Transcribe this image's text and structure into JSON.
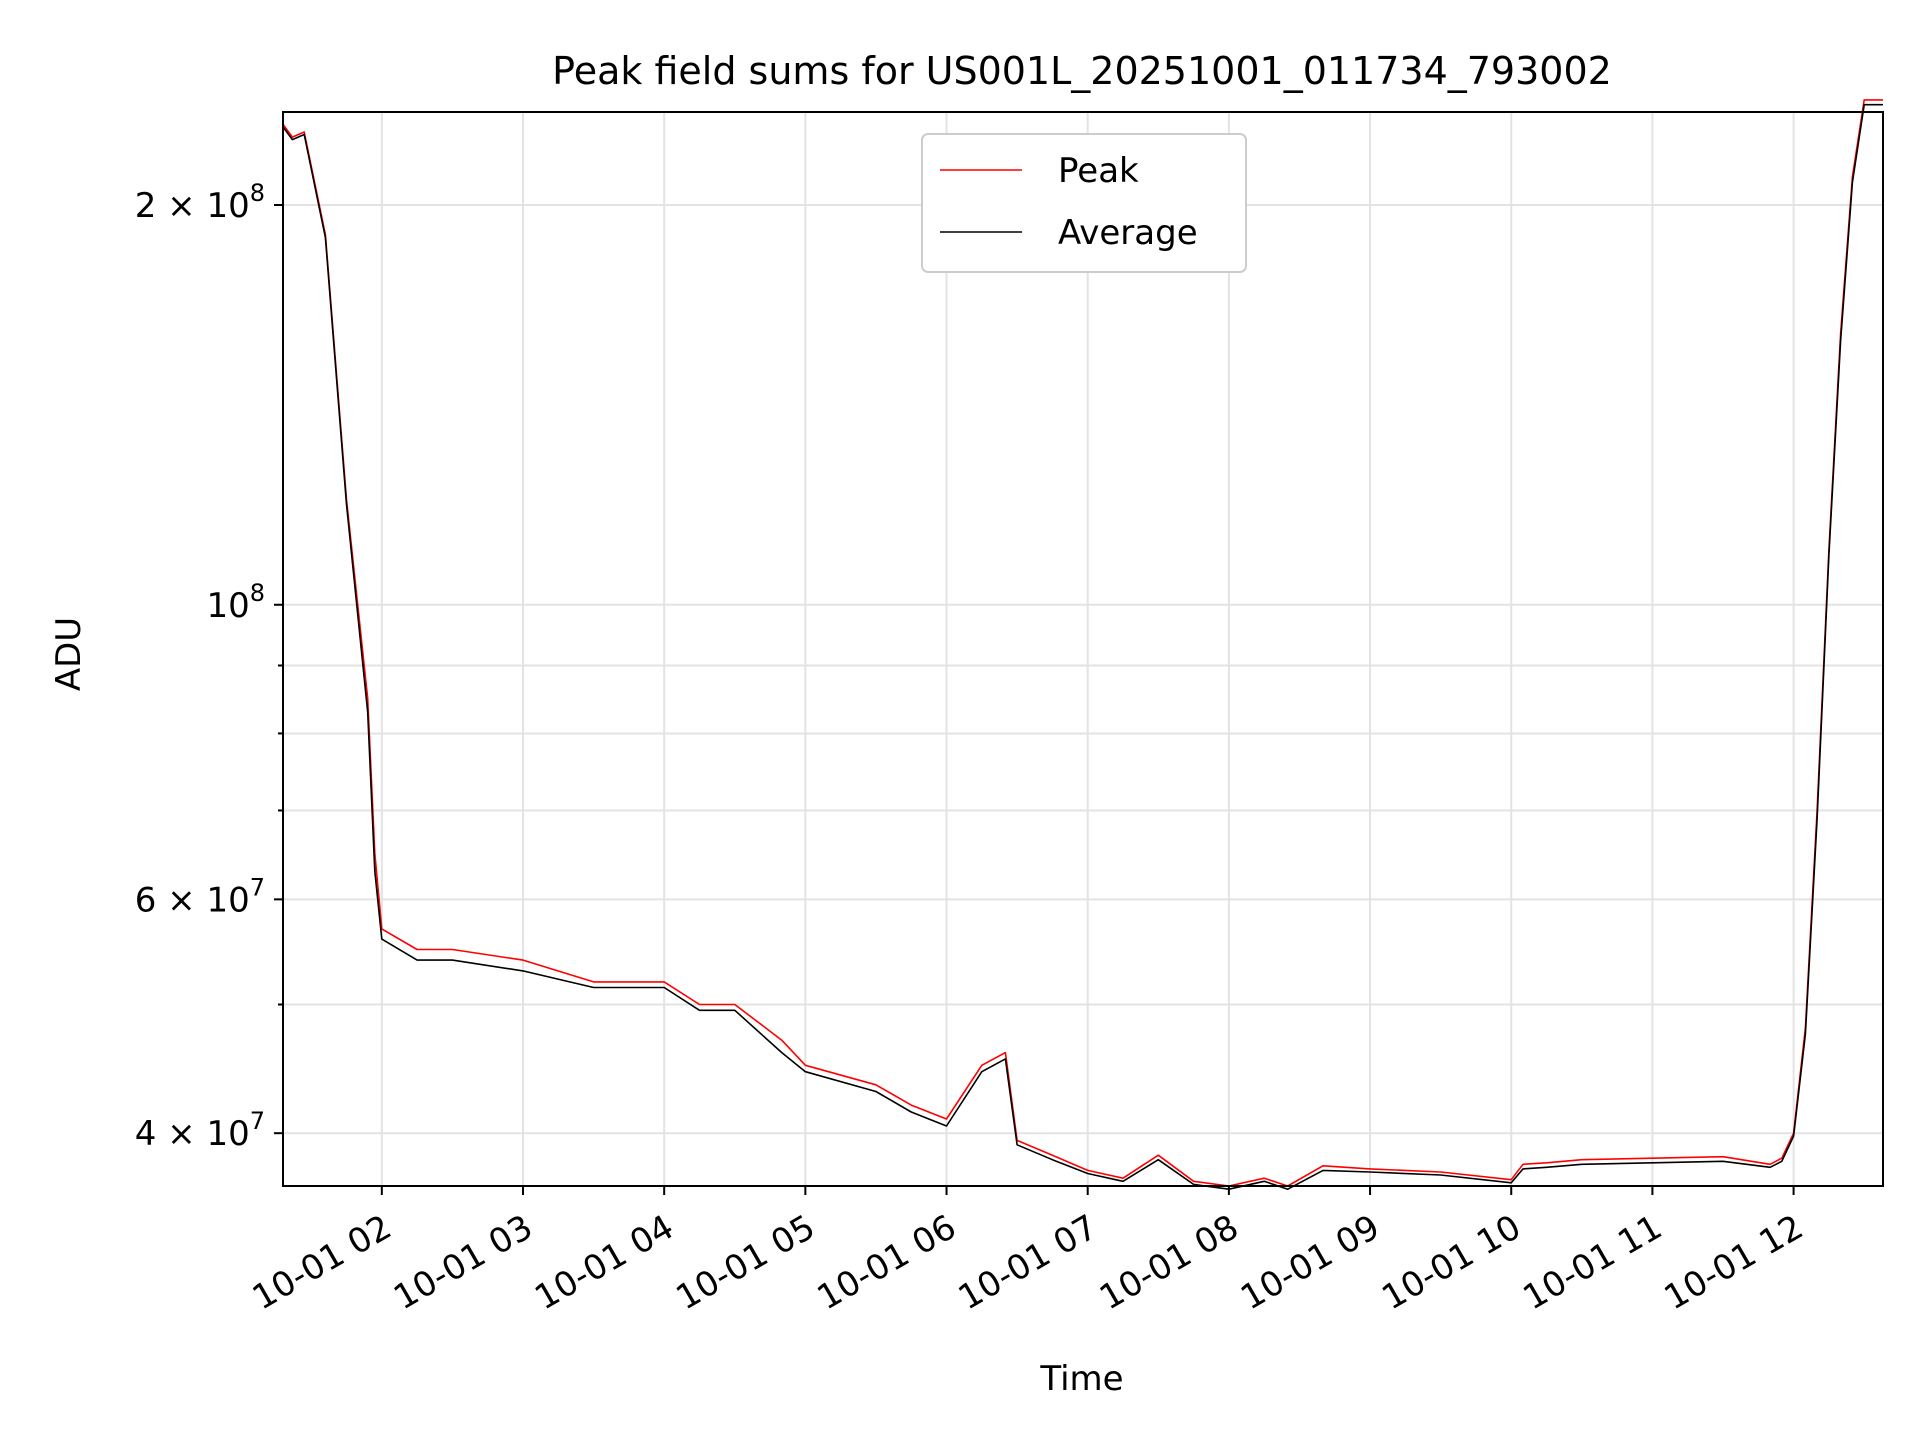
{
  "chart_data": {
    "type": "line",
    "title": "Peak field sums for US001L_20251001_011734_793002",
    "xlabel": "Time",
    "ylabel": "ADU",
    "yscale": "log",
    "xlim": [
      "2025-10-01 01:18",
      "2025-10-01 12:38"
    ],
    "ylim": [
      36500000,
      235000000
    ],
    "x_ticks": [
      "10-01 02",
      "10-01 03",
      "10-01 04",
      "10-01 05",
      "10-01 06",
      "10-01 07",
      "10-01 08",
      "10-01 09",
      "10-01 10",
      "10-01 11",
      "10-01 12"
    ],
    "y_major_ticks": [
      {
        "value": 40000000,
        "base": "4 × 10",
        "exp": "7"
      },
      {
        "value": 60000000,
        "base": "6 × 10",
        "exp": "7"
      },
      {
        "value": 100000000,
        "base": "10",
        "exp": "8"
      },
      {
        "value": 200000000,
        "base": "2 × 10",
        "exp": "8"
      }
    ],
    "y_grid_values": [
      40000000,
      50000000,
      60000000,
      70000000,
      80000000,
      90000000,
      100000000,
      200000000
    ],
    "grid": true,
    "legend_position": "top-center",
    "series": [
      {
        "name": "Peak",
        "color": "#ff0000",
        "x": [
          "2025-10-01 01:18",
          "2025-10-01 01:22",
          "2025-10-01 01:27",
          "2025-10-01 01:36",
          "2025-10-01 01:45",
          "2025-10-01 01:54",
          "2025-10-01 01:57",
          "2025-10-01 02:00",
          "2025-10-01 02:15",
          "2025-10-01 02:30",
          "2025-10-01 03:00",
          "2025-10-01 03:30",
          "2025-10-01 04:00",
          "2025-10-01 04:15",
          "2025-10-01 04:30",
          "2025-10-01 04:50",
          "2025-10-01 05:00",
          "2025-10-01 05:30",
          "2025-10-01 05:45",
          "2025-10-01 06:00",
          "2025-10-01 06:15",
          "2025-10-01 06:25",
          "2025-10-01 06:30",
          "2025-10-01 06:45",
          "2025-10-01 07:00",
          "2025-10-01 07:15",
          "2025-10-01 07:30",
          "2025-10-01 07:45",
          "2025-10-01 08:00",
          "2025-10-01 08:15",
          "2025-10-01 08:25",
          "2025-10-01 08:40",
          "2025-10-01 09:00",
          "2025-10-01 09:30",
          "2025-10-01 10:00",
          "2025-10-01 10:05",
          "2025-10-01 10:15",
          "2025-10-01 10:30",
          "2025-10-01 11:00",
          "2025-10-01 11:30",
          "2025-10-01 11:50",
          "2025-10-01 11:55",
          "2025-10-01 12:00",
          "2025-10-01 12:05",
          "2025-10-01 12:10",
          "2025-10-01 12:15",
          "2025-10-01 12:20",
          "2025-10-01 12:25",
          "2025-10-01 12:30",
          "2025-10-01 12:38"
        ],
        "y": [
          230000000,
          225000000,
          227000000,
          190000000,
          120000000,
          85000000,
          65000000,
          57000000,
          55000000,
          55000000,
          54000000,
          52000000,
          52000000,
          50000000,
          50000000,
          47000000,
          45000000,
          43500000,
          42000000,
          41000000,
          45000000,
          46000000,
          39500000,
          38500000,
          37500000,
          37000000,
          38500000,
          36800000,
          36500000,
          37000000,
          36500000,
          37800000,
          37600000,
          37400000,
          36900000,
          37900000,
          38000000,
          38200000,
          38300000,
          38400000,
          37900000,
          38300000,
          40000000,
          48000000,
          70000000,
          110000000,
          160000000,
          210000000,
          240000000,
          240000000
        ]
      },
      {
        "name": "Average",
        "color": "#000000",
        "x": [
          "2025-10-01 01:18",
          "2025-10-01 01:22",
          "2025-10-01 01:27",
          "2025-10-01 01:36",
          "2025-10-01 01:45",
          "2025-10-01 01:54",
          "2025-10-01 01:57",
          "2025-10-01 02:00",
          "2025-10-01 02:15",
          "2025-10-01 02:30",
          "2025-10-01 03:00",
          "2025-10-01 03:30",
          "2025-10-01 04:00",
          "2025-10-01 04:15",
          "2025-10-01 04:30",
          "2025-10-01 04:50",
          "2025-10-01 05:00",
          "2025-10-01 05:30",
          "2025-10-01 05:45",
          "2025-10-01 06:00",
          "2025-10-01 06:15",
          "2025-10-01 06:25",
          "2025-10-01 06:30",
          "2025-10-01 06:45",
          "2025-10-01 07:00",
          "2025-10-01 07:15",
          "2025-10-01 07:30",
          "2025-10-01 07:45",
          "2025-10-01 08:00",
          "2025-10-01 08:15",
          "2025-10-01 08:25",
          "2025-10-01 08:40",
          "2025-10-01 09:00",
          "2025-10-01 09:30",
          "2025-10-01 10:00",
          "2025-10-01 10:05",
          "2025-10-01 10:15",
          "2025-10-01 10:30",
          "2025-10-01 11:00",
          "2025-10-01 11:30",
          "2025-10-01 11:50",
          "2025-10-01 11:55",
          "2025-10-01 12:00",
          "2025-10-01 12:05",
          "2025-10-01 12:10",
          "2025-10-01 12:15",
          "2025-10-01 12:20",
          "2025-10-01 12:25",
          "2025-10-01 12:30",
          "2025-10-01 12:38"
        ],
        "y": [
          229000000,
          224000000,
          226000000,
          189000000,
          119000000,
          83000000,
          63000000,
          56000000,
          54000000,
          54000000,
          53000000,
          51500000,
          51500000,
          49500000,
          49500000,
          46000000,
          44500000,
          43000000,
          41500000,
          40500000,
          44500000,
          45500000,
          39200000,
          38200000,
          37300000,
          36800000,
          38200000,
          36600000,
          36300000,
          36800000,
          36300000,
          37500000,
          37400000,
          37200000,
          36700000,
          37600000,
          37700000,
          37900000,
          38000000,
          38100000,
          37700000,
          38100000,
          39800000,
          47500000,
          69000000,
          109000000,
          158000000,
          208000000,
          238000000,
          238000000
        ]
      }
    ]
  }
}
